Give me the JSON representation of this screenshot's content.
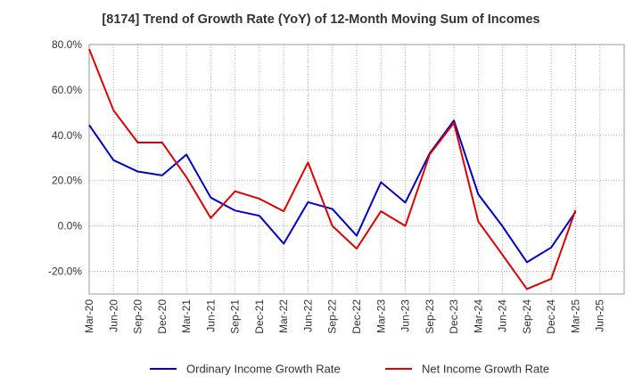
{
  "chart_data": {
    "type": "line",
    "title": "[8174]  Trend of Growth Rate (YoY) of 12-Month Moving Sum of Incomes",
    "xlabel": "",
    "ylabel": "",
    "ylim": [
      -30,
      80
    ],
    "y_ticks": [
      -20,
      0,
      20,
      40,
      60,
      80
    ],
    "y_tick_labels": [
      "-20.0%",
      "0.0%",
      "20.0%",
      "40.0%",
      "60.0%",
      "80.0%"
    ],
    "x_tick_labels": [
      "Mar-20",
      "Jun-20",
      "Sep-20",
      "Dec-20",
      "Mar-21",
      "Jun-21",
      "Sep-21",
      "Dec-21",
      "Mar-22",
      "Jun-22",
      "Sep-22",
      "Dec-22",
      "Mar-23",
      "Jun-23",
      "Sep-23",
      "Dec-23",
      "Mar-24",
      "Jun-24",
      "Sep-24",
      "Dec-24",
      "Mar-25",
      "Jun-25"
    ],
    "x": [
      "Mar-20",
      "Jun-20",
      "Sep-20",
      "Dec-20",
      "Mar-21",
      "Jun-21",
      "Sep-21",
      "Dec-21",
      "Mar-22",
      "Jun-22",
      "Sep-22",
      "Dec-22",
      "Mar-23",
      "Jun-23",
      "Sep-23",
      "Dec-23",
      "Mar-24",
      "Jun-24",
      "Sep-24",
      "Dec-24",
      "Mar-25"
    ],
    "grid": true,
    "legend_position": "bottom",
    "series": [
      {
        "name": "Ordinary Income Growth Rate",
        "color": "#0000cc",
        "values": [
          44.5,
          29.0,
          24.0,
          22.3,
          31.5,
          12.5,
          6.8,
          4.5,
          -7.8,
          10.5,
          7.5,
          -4.3,
          19.3,
          10.3,
          32.0,
          46.5,
          14.0,
          -0.2,
          -16.0,
          -9.5,
          6.2
        ]
      },
      {
        "name": "Net Income Growth Rate",
        "color": "#e00000",
        "values": [
          78.0,
          51.0,
          36.8,
          36.8,
          21.5,
          3.5,
          15.3,
          12.0,
          6.5,
          28.0,
          0.0,
          -10.0,
          6.5,
          0.0,
          31.5,
          45.5,
          2.0,
          -12.8,
          -27.8,
          -23.3,
          7.0
        ]
      }
    ]
  }
}
